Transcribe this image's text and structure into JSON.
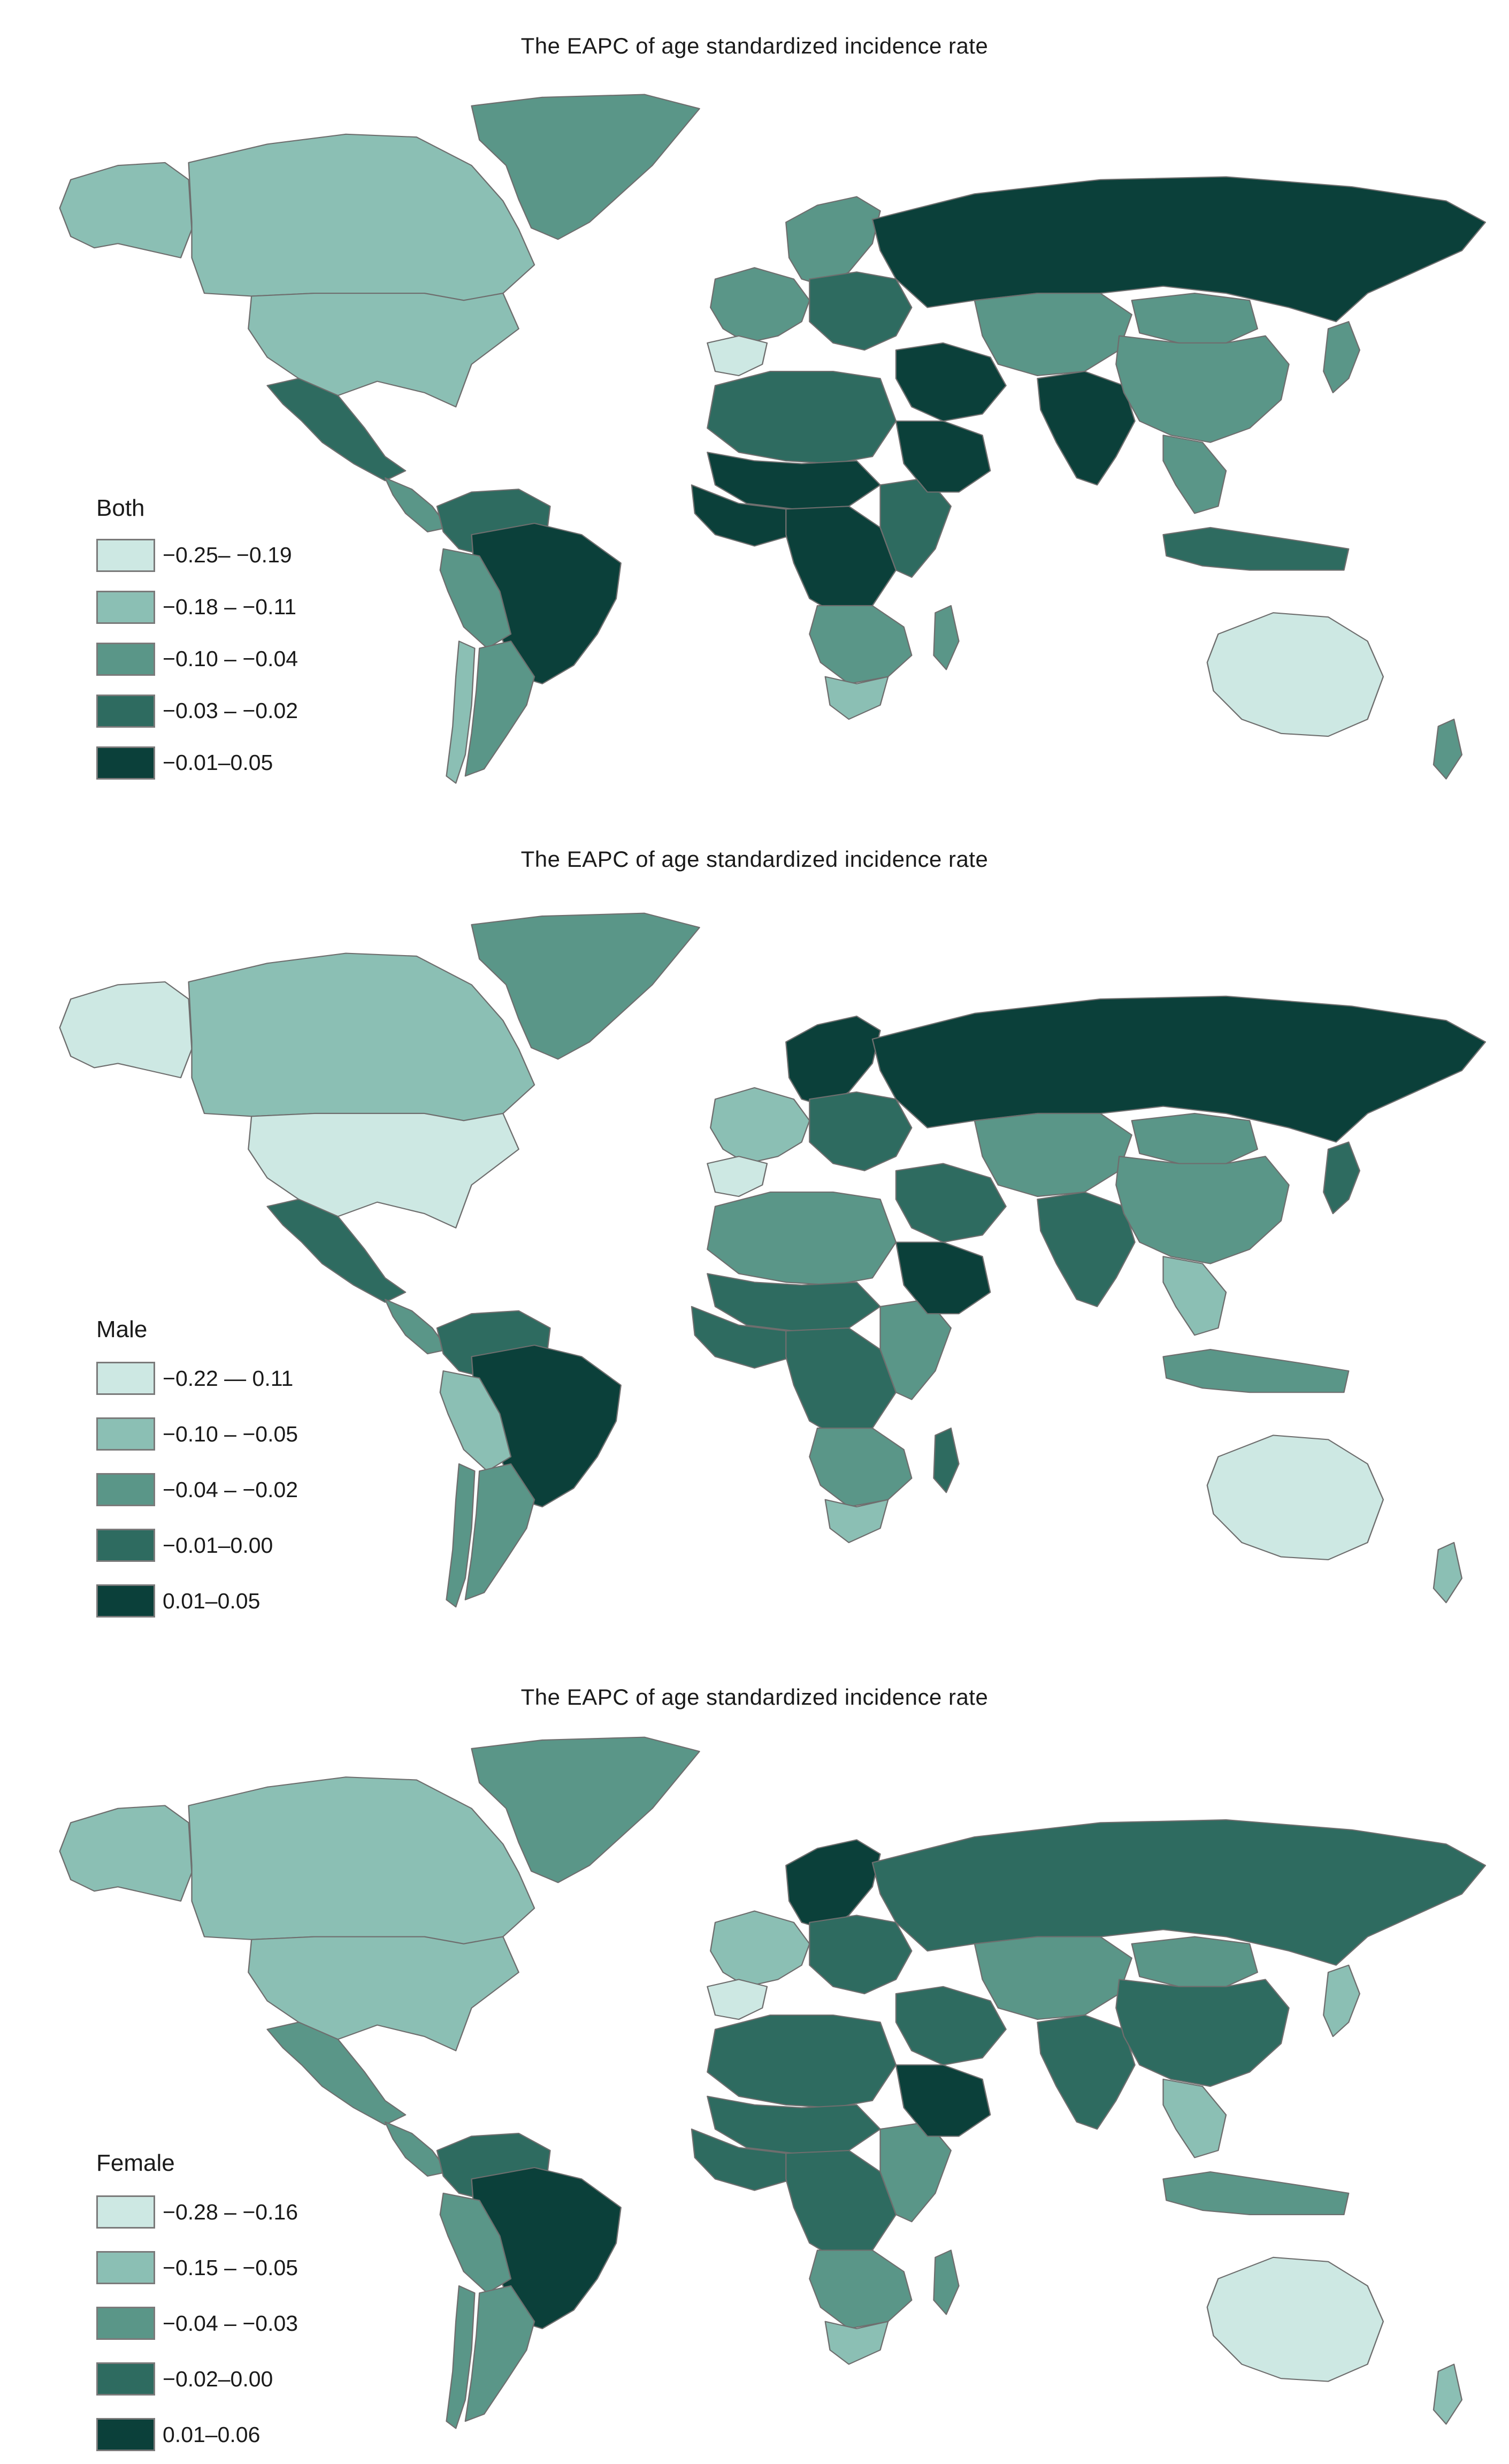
{
  "palette": [
    "#cde8e3",
    "#8bbfb4",
    "#5a9688",
    "#2e6b60",
    "#0b403a"
  ],
  "panels": [
    {
      "id": "both",
      "title": "The EAPC of age standardized incidence rate",
      "legend": {
        "title": "Both",
        "ranges": [
          "−0.25– −0.19",
          "−0.18 – −0.11",
          "−0.10 – −0.04",
          "−0.03 – −0.02",
          "−0.01–0.05"
        ]
      },
      "regions": {
        "alaska": 1,
        "canada": 1,
        "usa": 1,
        "mexico": 3,
        "central_america": 2,
        "greenland": 2,
        "colombia_venezuela": 3,
        "brazil": 4,
        "peru_bolivia": 2,
        "chile": 1,
        "argentina": 2,
        "scandinavia": 2,
        "western_europe": 2,
        "iberia": 0,
        "eastern_europe": 3,
        "russia": 4,
        "north_africa": 3,
        "sahel": 4,
        "west_africa": 4,
        "central_africa": 4,
        "east_africa": 3,
        "southern_africa": 2,
        "south_africa": 1,
        "madagascar": 2,
        "middle_east": 4,
        "arabia": 4,
        "central_asia": 2,
        "india": 4,
        "china": 2,
        "mongolia": 2,
        "se_asia": 2,
        "indonesia": 3,
        "japan": 2,
        "australia": 0,
        "new_zealand": 2
      }
    },
    {
      "id": "male",
      "title": "The EAPC of age standardized incidence rate",
      "legend": {
        "title": "Male",
        "ranges": [
          "−0.22 — 0.11",
          "−0.10 – −0.05",
          "−0.04 – −0.02",
          "−0.01–0.00",
          "0.01–0.05"
        ]
      },
      "regions": {
        "alaska": 0,
        "canada": 1,
        "usa": 0,
        "mexico": 3,
        "central_america": 2,
        "greenland": 2,
        "colombia_venezuela": 3,
        "brazil": 4,
        "peru_bolivia": 1,
        "chile": 2,
        "argentina": 2,
        "scandinavia": 4,
        "western_europe": 1,
        "iberia": 0,
        "eastern_europe": 3,
        "russia": 4,
        "north_africa": 2,
        "sahel": 3,
        "west_africa": 3,
        "central_africa": 3,
        "east_africa": 2,
        "southern_africa": 2,
        "south_africa": 1,
        "madagascar": 3,
        "middle_east": 3,
        "arabia": 4,
        "central_asia": 2,
        "india": 3,
        "china": 2,
        "mongolia": 2,
        "se_asia": 1,
        "indonesia": 2,
        "japan": 3,
        "australia": 0,
        "new_zealand": 1
      }
    },
    {
      "id": "female",
      "title": "The EAPC of age standardized incidence rate",
      "legend": {
        "title": "Female",
        "ranges": [
          "−0.28 – −0.16",
          "−0.15 – −0.05",
          "−0.04 – −0.03",
          "−0.02–0.00",
          "0.01–0.06"
        ]
      },
      "regions": {
        "alaska": 1,
        "canada": 1,
        "usa": 1,
        "mexico": 2,
        "central_america": 2,
        "greenland": 2,
        "colombia_venezuela": 3,
        "brazil": 4,
        "peru_bolivia": 2,
        "chile": 2,
        "argentina": 2,
        "scandinavia": 4,
        "western_europe": 1,
        "iberia": 0,
        "eastern_europe": 3,
        "russia": 3,
        "north_africa": 3,
        "sahel": 3,
        "west_africa": 3,
        "central_africa": 3,
        "east_africa": 2,
        "southern_africa": 2,
        "south_africa": 1,
        "madagascar": 2,
        "middle_east": 3,
        "arabia": 4,
        "central_asia": 2,
        "india": 3,
        "china": 3,
        "mongolia": 2,
        "se_asia": 1,
        "indonesia": 2,
        "japan": 1,
        "australia": 0,
        "new_zealand": 1
      }
    }
  ]
}
